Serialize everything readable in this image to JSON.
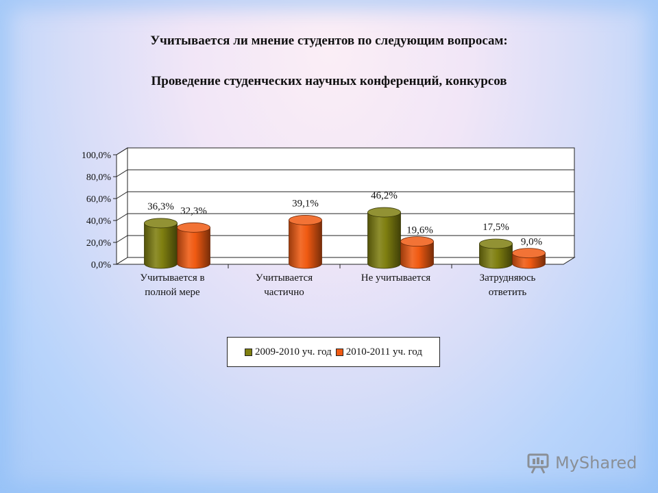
{
  "slide": {
    "title_line1": "Учитывается ли мнение студентов по следующим вопросам:",
    "title_line2": "Проведение студенческих научных конференций, конкурсов"
  },
  "watermark": {
    "text": "MyShared"
  },
  "chart_data": {
    "type": "bar",
    "style": "3d-cylinder",
    "grid": true,
    "ylim": [
      0,
      100
    ],
    "yticks": [
      "0,0%",
      "20,0%",
      "40,0%",
      "60,0%",
      "80,0%",
      "100,0%"
    ],
    "categories": [
      [
        "Учитывается в",
        "полной мере"
      ],
      [
        "Учитывается",
        "частично"
      ],
      [
        "Не учитывается"
      ],
      [
        "Затрудняюсь",
        "ответить"
      ]
    ],
    "series": [
      {
        "name": "2009-2010 уч. год",
        "color": "#7f7f10",
        "values": [
          36.3,
          null,
          46.2,
          17.5
        ],
        "labels": [
          "36,3%",
          "",
          "46,2%",
          "17,5%"
        ]
      },
      {
        "name": "2010-2011 уч. год",
        "color": "#f05a12",
        "values": [
          32.3,
          39.1,
          19.6,
          9.0
        ],
        "labels": [
          "32,3%",
          "39,1%",
          "19,6%",
          "9,0%"
        ]
      }
    ],
    "legend_position": "bottom"
  }
}
